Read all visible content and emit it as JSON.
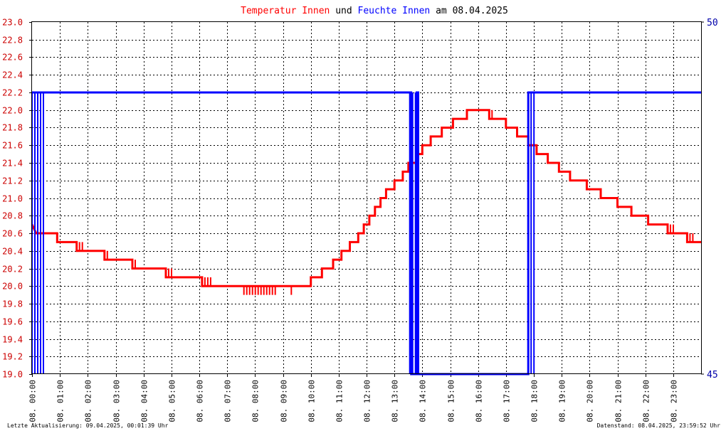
{
  "chart_data": {
    "type": "line",
    "title": {
      "parts": [
        {
          "text": "Temperatur Innen",
          "color": "#ff0000"
        },
        {
          "text": " und ",
          "color": "#000000"
        },
        {
          "text": "Feuchte Innen",
          "color": "#0000ff"
        },
        {
          "text": " am 08.04.2025",
          "color": "#000000"
        }
      ]
    },
    "x_ticks": [
      "08. 00:00",
      "08. 01:00",
      "08. 02:00",
      "08. 03:00",
      "08. 04:00",
      "08. 05:00",
      "08. 06:00",
      "08. 07:00",
      "08. 08:00",
      "08. 09:00",
      "08. 10:00",
      "08. 11:00",
      "08. 12:00",
      "08. 13:00",
      "08. 14:00",
      "08. 15:00",
      "08. 16:00",
      "08. 17:00",
      "08. 18:00",
      "08. 19:00",
      "08. 20:00",
      "08. 21:00",
      "08. 22:00",
      "08. 23:00"
    ],
    "xlim_hours": [
      0,
      24
    ],
    "y_left": {
      "min": 19.0,
      "max": 23.0,
      "step": 0.2,
      "color": "#cc0000"
    },
    "y_right": {
      "min": 45,
      "max": 50,
      "ticks": [
        "45",
        "50"
      ],
      "color": "#0000aa"
    },
    "grid": true,
    "series": [
      {
        "name": "Temperatur Innen",
        "axis": "left",
        "color": "#ff0000",
        "points": [
          [
            0.0,
            20.7
          ],
          [
            0.15,
            20.6
          ],
          [
            0.9,
            20.6
          ],
          [
            0.9,
            20.5
          ],
          [
            1.6,
            20.5
          ],
          [
            1.6,
            20.4
          ],
          [
            2.6,
            20.4
          ],
          [
            2.6,
            20.3
          ],
          [
            3.6,
            20.3
          ],
          [
            3.6,
            20.2
          ],
          [
            4.8,
            20.2
          ],
          [
            4.8,
            20.1
          ],
          [
            6.1,
            20.1
          ],
          [
            6.1,
            20.0
          ],
          [
            10.0,
            20.0
          ],
          [
            10.0,
            20.1
          ],
          [
            10.4,
            20.1
          ],
          [
            10.4,
            20.2
          ],
          [
            10.8,
            20.2
          ],
          [
            10.8,
            20.3
          ],
          [
            11.1,
            20.3
          ],
          [
            11.1,
            20.4
          ],
          [
            11.4,
            20.4
          ],
          [
            11.4,
            20.5
          ],
          [
            11.7,
            20.5
          ],
          [
            11.7,
            20.6
          ],
          [
            11.9,
            20.6
          ],
          [
            11.9,
            20.7
          ],
          [
            12.1,
            20.7
          ],
          [
            12.1,
            20.8
          ],
          [
            12.3,
            20.8
          ],
          [
            12.3,
            20.9
          ],
          [
            12.5,
            20.9
          ],
          [
            12.5,
            21.0
          ],
          [
            12.7,
            21.0
          ],
          [
            12.7,
            21.1
          ],
          [
            13.0,
            21.1
          ],
          [
            13.0,
            21.2
          ],
          [
            13.3,
            21.2
          ],
          [
            13.3,
            21.3
          ],
          [
            13.5,
            21.3
          ],
          [
            13.5,
            21.4
          ],
          [
            13.8,
            21.4
          ],
          [
            13.8,
            21.5
          ],
          [
            14.0,
            21.5
          ],
          [
            14.0,
            21.6
          ],
          [
            14.3,
            21.6
          ],
          [
            14.3,
            21.7
          ],
          [
            14.7,
            21.7
          ],
          [
            14.7,
            21.8
          ],
          [
            15.1,
            21.8
          ],
          [
            15.1,
            21.9
          ],
          [
            15.6,
            21.9
          ],
          [
            15.6,
            22.0
          ],
          [
            16.4,
            22.0
          ],
          [
            16.4,
            21.9
          ],
          [
            17.0,
            21.9
          ],
          [
            17.0,
            21.8
          ],
          [
            17.4,
            21.8
          ],
          [
            17.4,
            21.7
          ],
          [
            17.8,
            21.7
          ],
          [
            17.8,
            21.6
          ],
          [
            18.1,
            21.6
          ],
          [
            18.1,
            21.5
          ],
          [
            18.5,
            21.5
          ],
          [
            18.5,
            21.4
          ],
          [
            18.9,
            21.4
          ],
          [
            18.9,
            21.3
          ],
          [
            19.3,
            21.3
          ],
          [
            19.3,
            21.2
          ],
          [
            19.9,
            21.2
          ],
          [
            19.9,
            21.1
          ],
          [
            20.4,
            21.1
          ],
          [
            20.4,
            21.0
          ],
          [
            21.0,
            21.0
          ],
          [
            21.0,
            20.9
          ],
          [
            21.5,
            20.9
          ],
          [
            21.5,
            20.8
          ],
          [
            22.1,
            20.8
          ],
          [
            22.1,
            20.7
          ],
          [
            22.8,
            20.7
          ],
          [
            22.8,
            20.6
          ],
          [
            23.5,
            20.6
          ],
          [
            23.5,
            20.5
          ],
          [
            24.0,
            20.5
          ]
        ],
        "jitter": [
          {
            "from": 0.0,
            "to": 0.2,
            "low": 20.6,
            "high": 20.7
          },
          {
            "from": 1.6,
            "to": 1.9,
            "low": 20.4,
            "high": 20.5
          },
          {
            "from": 2.6,
            "to": 2.8,
            "low": 20.3,
            "high": 20.4
          },
          {
            "from": 3.6,
            "to": 3.8,
            "low": 20.2,
            "high": 20.3
          },
          {
            "from": 4.8,
            "to": 5.1,
            "low": 20.1,
            "high": 20.2
          },
          {
            "from": 6.1,
            "to": 6.5,
            "low": 20.0,
            "high": 20.1
          },
          {
            "from": 7.6,
            "to": 8.8,
            "low": 19.9,
            "high": 20.0
          },
          {
            "from": 9.3,
            "to": 9.35,
            "low": 19.9,
            "high": 20.0
          },
          {
            "from": 16.4,
            "to": 16.6,
            "low": 21.9,
            "high": 22.0
          },
          {
            "from": 22.8,
            "to": 23.1,
            "low": 20.6,
            "high": 20.7
          },
          {
            "from": 23.5,
            "to": 23.8,
            "low": 20.5,
            "high": 20.6
          }
        ]
      },
      {
        "name": "Feuchte Innen",
        "axis": "right",
        "color": "#0000ff",
        "points": [
          [
            0.0,
            49.0
          ],
          [
            13.6,
            49.0
          ],
          [
            13.6,
            45.0
          ],
          [
            13.8,
            45.0
          ],
          [
            13.8,
            49.0
          ],
          [
            13.85,
            49.0
          ],
          [
            13.85,
            45.0
          ],
          [
            17.8,
            45.0
          ],
          [
            17.8,
            49.0
          ],
          [
            24.0,
            49.0
          ]
        ],
        "jitter": [
          {
            "from": 0.0,
            "to": 0.5,
            "low": 45.0,
            "high": 49.0
          },
          {
            "from": 13.55,
            "to": 13.95,
            "low": 45.0,
            "high": 49.0
          },
          {
            "from": 17.8,
            "to": 18.1,
            "low": 45.0,
            "high": 49.0
          }
        ]
      }
    ]
  },
  "footer": {
    "left": "Letzte Aktualisierung: 09.04.2025, 00:01:39 Uhr",
    "right": "Datenstand: 08.04.2025, 23:59:52 Uhr"
  }
}
